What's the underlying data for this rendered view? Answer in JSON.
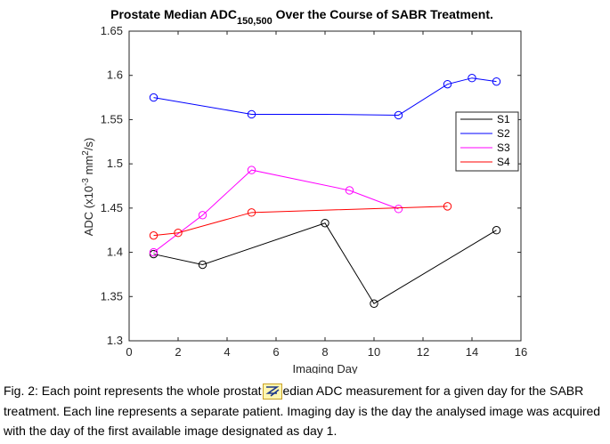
{
  "chart_data": {
    "type": "line",
    "title_main": "Prostate Median ADC",
    "title_subscript": "150,500",
    "title_rest": " Over the Course of SABR Treatment.",
    "xlabel": "Imaging Day",
    "ylabel_prefix": "ADC (x10",
    "ylabel_sup1": "-3",
    "ylabel_mid": " mm",
    "ylabel_sup2": "2",
    "ylabel_suffix": "/s)",
    "xlim": [
      0,
      16
    ],
    "ylim": [
      1.3,
      1.65
    ],
    "xticks": [
      0,
      2,
      4,
      6,
      8,
      10,
      12,
      14,
      16
    ],
    "xtick_labels": [
      "0",
      "2",
      "4",
      "6",
      "8",
      "10",
      "12",
      "14",
      "16"
    ],
    "yticks": [
      1.3,
      1.35,
      1.4,
      1.45,
      1.5,
      1.55,
      1.6,
      1.65
    ],
    "ytick_labels": [
      "1.3",
      "1.35",
      "1.4",
      "1.45",
      "1.5",
      "1.55",
      "1.6",
      "1.65"
    ],
    "grid": false,
    "legend_position": "right",
    "series": [
      {
        "name": "S1",
        "color": "#000000",
        "x": [
          1,
          3,
          8,
          10,
          15
        ],
        "y": [
          1.398,
          1.386,
          1.433,
          1.342,
          1.425
        ],
        "markers": [
          true,
          true,
          true,
          true,
          true
        ]
      },
      {
        "name": "S2",
        "color": "#0000ff",
        "x": [
          1,
          5,
          6,
          8,
          11,
          13,
          14,
          15
        ],
        "y": [
          1.575,
          1.556,
          1.556,
          1.556,
          1.555,
          1.59,
          1.597,
          1.593
        ],
        "markers": [
          true,
          true,
          false,
          false,
          true,
          true,
          true,
          true
        ]
      },
      {
        "name": "S3",
        "color": "#ff00ff",
        "x": [
          1,
          3,
          5,
          9,
          11
        ],
        "y": [
          1.4,
          1.442,
          1.493,
          1.47,
          1.449
        ],
        "markers": [
          true,
          true,
          true,
          true,
          true
        ]
      },
      {
        "name": "S4",
        "color": "#ff0000",
        "x": [
          1,
          2,
          5,
          13
        ],
        "y": [
          1.419,
          1.422,
          1.445,
          1.452
        ],
        "markers": [
          true,
          true,
          true,
          true
        ]
      }
    ]
  },
  "caption": {
    "part1": "Fig. 2: Each point represents the whole prostat",
    "icon": "pen-icon",
    "part2": "edian ADC measurement for a given day for the SABR treatment. Each line represents a separate patient. Imaging day is the day the analysed image was acquired with the day of the first available image designated as day 1."
  }
}
